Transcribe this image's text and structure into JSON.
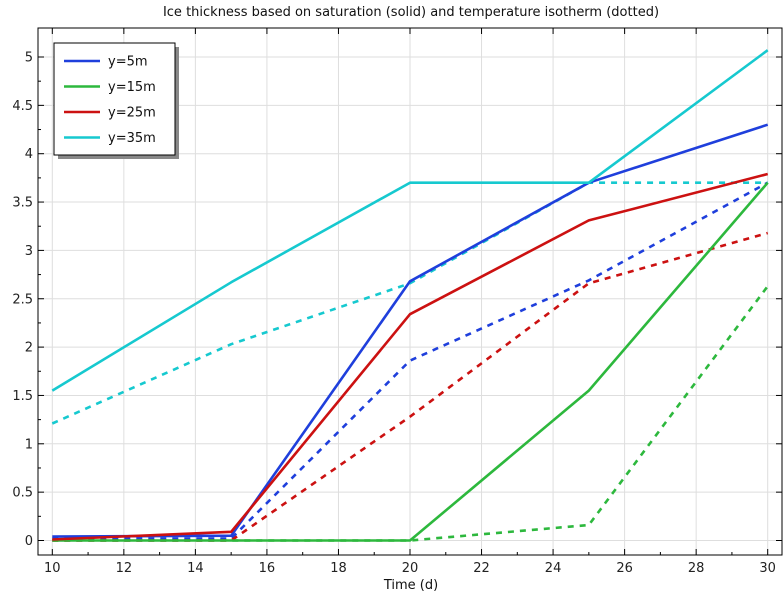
{
  "chart_data": {
    "type": "line",
    "title": "Ice thickness based on saturation (solid) and temperature isotherm (dotted)",
    "xlabel": "Time (d)",
    "ylabel": "",
    "xlim": [
      9.6,
      30.4
    ],
    "ylim": [
      -0.15,
      5.3
    ],
    "x_ticks": [
      10,
      12,
      14,
      16,
      18,
      20,
      22,
      24,
      26,
      28,
      30
    ],
    "y_ticks": [
      0,
      0.5,
      1,
      1.5,
      2,
      2.5,
      3,
      3.5,
      4,
      4.5,
      5
    ],
    "y_tick_labels": [
      "0",
      "0.5",
      "1",
      "1.5",
      "2",
      "2.5",
      "3",
      "3.5",
      "4",
      "4.5",
      "5"
    ],
    "grid": true,
    "legend_position": "top-left",
    "x": [
      10,
      15,
      20,
      25,
      30
    ],
    "series": [
      {
        "name": "y=5m",
        "color": "#1f3fdc",
        "style": "solid",
        "values": [
          0.04,
          0.05,
          2.68,
          3.7,
          4.3
        ]
      },
      {
        "name": "y=15m",
        "color": "#2db83d",
        "style": "solid",
        "values": [
          0.0,
          0.0,
          0.0,
          1.55,
          3.7
        ]
      },
      {
        "name": "y=25m",
        "color": "#cc1111",
        "style": "solid",
        "values": [
          0.01,
          0.09,
          2.34,
          3.31,
          3.79
        ]
      },
      {
        "name": "y=35m",
        "color": "#16c9cf",
        "style": "solid",
        "values": [
          1.55,
          2.67,
          3.7,
          3.7,
          5.07
        ]
      },
      {
        "name": "",
        "color": "#1f3fdc",
        "style": "dotted",
        "values": [
          0.02,
          0.02,
          1.86,
          2.69,
          3.7
        ]
      },
      {
        "name": "",
        "color": "#2db83d",
        "style": "dotted",
        "values": [
          0.0,
          0.0,
          0.0,
          0.16,
          2.63
        ]
      },
      {
        "name": "",
        "color": "#cc1111",
        "style": "dotted",
        "values": [
          0.0,
          0.0,
          1.28,
          2.66,
          3.18
        ]
      },
      {
        "name": "",
        "color": "#16c9cf",
        "style": "dotted",
        "values": [
          1.21,
          2.03,
          2.66,
          3.7,
          3.7
        ]
      }
    ]
  }
}
